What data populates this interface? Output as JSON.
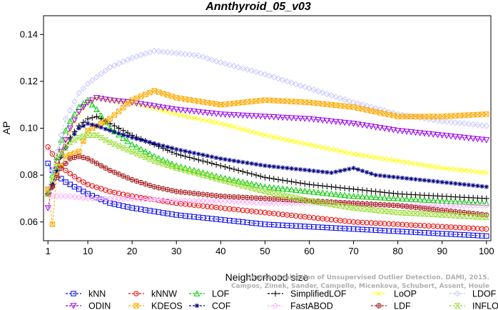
{
  "chart_data": {
    "type": "line",
    "title": "Annthyroid_05_v03",
    "xlabel": "Neighborhood size",
    "ylabel": "AP",
    "xlim": [
      0,
      101
    ],
    "ylim": [
      0.052,
      0.148
    ],
    "xticks": [
      1,
      10,
      20,
      30,
      40,
      50,
      60,
      70,
      80,
      90,
      100
    ],
    "yticks": [
      0.06,
      0.08,
      0.1,
      0.12,
      0.14
    ],
    "ytick_labels": [
      "0.06",
      "0.08",
      "0.10",
      "0.12",
      "0.14"
    ],
    "legend_position": "bottom",
    "watermark": {
      "line1": "Source: Evaluation of Unsupervised Outlier Detection. DAMI, 2015.",
      "line2": "Campos, Zimek, Sander, Campello, Micenkova, Schubert, Assent, Houle"
    },
    "series": [
      {
        "name": "kNN",
        "color": "#0000ee",
        "marker": "square",
        "x": [
          1,
          2,
          3,
          5,
          8,
          10,
          15,
          20,
          30,
          40,
          50,
          60,
          70,
          80,
          90,
          100
        ],
        "y": [
          0.085,
          0.082,
          0.08,
          0.077,
          0.074,
          0.072,
          0.068,
          0.066,
          0.063,
          0.061,
          0.059,
          0.058,
          0.057,
          0.056,
          0.055,
          0.054
        ]
      },
      {
        "name": "kNNW",
        "color": "#ee0000",
        "marker": "circle",
        "x": [
          1,
          2,
          3,
          5,
          8,
          10,
          15,
          20,
          30,
          40,
          50,
          60,
          70,
          80,
          90,
          100
        ],
        "y": [
          0.092,
          0.089,
          0.086,
          0.082,
          0.078,
          0.076,
          0.073,
          0.071,
          0.068,
          0.066,
          0.064,
          0.062,
          0.06,
          0.059,
          0.058,
          0.057
        ]
      },
      {
        "name": "LOF",
        "color": "#00cc00",
        "marker": "triangle-up",
        "x": [
          1,
          2,
          4,
          6,
          8,
          10,
          12,
          15,
          20,
          25,
          30,
          40,
          50,
          60,
          70,
          80,
          90,
          100
        ],
        "y": [
          0.072,
          0.08,
          0.095,
          0.103,
          0.109,
          0.112,
          0.108,
          0.1,
          0.093,
          0.088,
          0.084,
          0.079,
          0.075,
          0.073,
          0.071,
          0.07,
          0.069,
          0.068
        ]
      },
      {
        "name": "SimplifiedLOF",
        "color": "#000000",
        "marker": "plus",
        "x": [
          1,
          2,
          4,
          6,
          8,
          10,
          12,
          15,
          20,
          25,
          30,
          40,
          50,
          60,
          70,
          80,
          90,
          100
        ],
        "y": [
          0.072,
          0.076,
          0.088,
          0.096,
          0.101,
          0.104,
          0.105,
          0.102,
          0.097,
          0.093,
          0.089,
          0.084,
          0.079,
          0.076,
          0.074,
          0.072,
          0.071,
          0.07
        ]
      },
      {
        "name": "LoOP",
        "color": "#ffff00",
        "marker": "x",
        "x": [
          1,
          2,
          4,
          6,
          8,
          10,
          12,
          15,
          20,
          30,
          40,
          50,
          60,
          70,
          80,
          90,
          100
        ],
        "y": [
          0.074,
          0.078,
          0.09,
          0.099,
          0.106,
          0.111,
          0.113,
          0.112,
          0.111,
          0.106,
          0.102,
          0.097,
          0.093,
          0.089,
          0.086,
          0.083,
          0.081
        ]
      },
      {
        "name": "LDOF",
        "color": "#c8c8ff",
        "marker": "diamond",
        "x": [
          1,
          3,
          5,
          8,
          10,
          15,
          20,
          25,
          30,
          35,
          40,
          50,
          60,
          70,
          80,
          90,
          100
        ],
        "y": [
          0.074,
          0.09,
          0.104,
          0.115,
          0.119,
          0.126,
          0.13,
          0.133,
          0.132,
          0.131,
          0.128,
          0.123,
          0.117,
          0.111,
          0.106,
          0.103,
          0.101
        ]
      },
      {
        "name": "ODIN",
        "color": "#9900ee",
        "marker": "triangle-down",
        "x": [
          1,
          2,
          4,
          6,
          8,
          10,
          12,
          15,
          20,
          30,
          40,
          50,
          60,
          70,
          80,
          90,
          100
        ],
        "y": [
          0.066,
          0.075,
          0.09,
          0.1,
          0.107,
          0.111,
          0.113,
          0.112,
          0.111,
          0.108,
          0.106,
          0.105,
          0.104,
          0.102,
          0.099,
          0.097,
          0.095
        ]
      },
      {
        "name": "KDEOS",
        "color": "#ffaa00",
        "marker": "square-x",
        "x": [
          1,
          2,
          3,
          5,
          8,
          10,
          15,
          20,
          25,
          30,
          40,
          50,
          60,
          70,
          80,
          90,
          100
        ],
        "y": [
          0.074,
          0.059,
          0.08,
          0.088,
          0.09,
          0.099,
          0.104,
          0.112,
          0.116,
          0.113,
          0.11,
          0.112,
          0.111,
          0.109,
          0.105,
          0.105,
          0.106
        ]
      },
      {
        "name": "COF",
        "color": "#000080",
        "marker": "asterisk",
        "x": [
          1,
          2,
          4,
          6,
          8,
          10,
          12,
          15,
          20,
          30,
          40,
          50,
          60,
          65,
          70,
          75,
          80,
          90,
          100
        ],
        "y": [
          0.072,
          0.076,
          0.088,
          0.095,
          0.1,
          0.102,
          0.101,
          0.099,
          0.096,
          0.091,
          0.087,
          0.084,
          0.082,
          0.081,
          0.083,
          0.08,
          0.079,
          0.077,
          0.075
        ]
      },
      {
        "name": "FastABOD",
        "color": "#ffb0ff",
        "marker": "diamond",
        "x": [
          1,
          2,
          4,
          6,
          10,
          15,
          20,
          30,
          40,
          50,
          60,
          70,
          80,
          90,
          100
        ],
        "y": [
          0.072,
          0.071,
          0.071,
          0.071,
          0.07,
          0.07,
          0.07,
          0.069,
          0.069,
          0.068,
          0.068,
          0.068,
          0.067,
          0.067,
          0.067
        ]
      },
      {
        "name": "LDF",
        "color": "#aa2222",
        "marker": "circle-plus",
        "x": [
          1,
          2,
          4,
          6,
          8,
          10,
          12,
          15,
          20,
          25,
          30,
          40,
          50,
          60,
          70,
          80,
          90,
          100
        ],
        "y": [
          0.072,
          0.075,
          0.083,
          0.087,
          0.088,
          0.087,
          0.085,
          0.082,
          0.078,
          0.075,
          0.073,
          0.071,
          0.07,
          0.069,
          0.068,
          0.067,
          0.065,
          0.063
        ]
      },
      {
        "name": "INFLO",
        "color": "#99dd33",
        "marker": "hourglass",
        "x": [
          1,
          2,
          4,
          6,
          8,
          10,
          12,
          15,
          20,
          25,
          30,
          40,
          50,
          60,
          70,
          80,
          90,
          100
        ],
        "y": [
          0.072,
          0.078,
          0.089,
          0.094,
          0.096,
          0.097,
          0.097,
          0.094,
          0.09,
          0.086,
          0.083,
          0.078,
          0.073,
          0.069,
          0.066,
          0.064,
          0.063,
          0.062
        ]
      }
    ]
  }
}
